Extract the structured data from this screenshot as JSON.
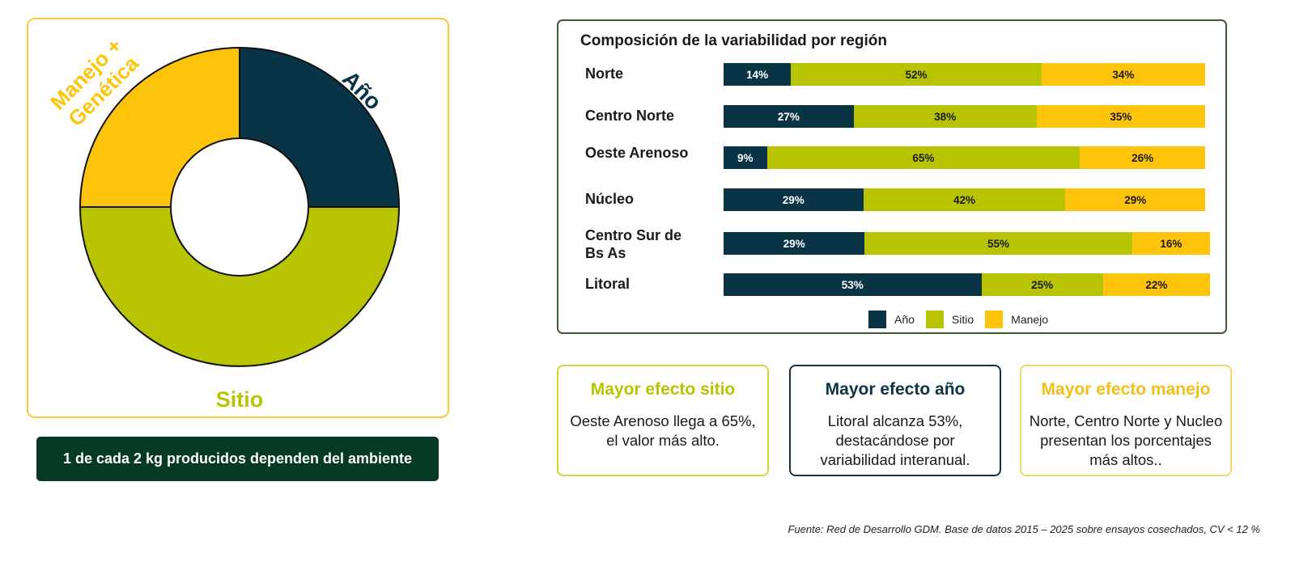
{
  "chart_data": [
    {
      "type": "pie",
      "variant": "donut",
      "slices": [
        {
          "label": "Año",
          "value": 25,
          "color": "#093446"
        },
        {
          "label": "Sitio",
          "value": 50,
          "color": "#b8c402"
        },
        {
          "label": "Manejo + Genética",
          "label_lines": [
            "Manejo +",
            "Genética"
          ],
          "value": 25,
          "color": "#fec40c"
        }
      ]
    },
    {
      "type": "bar",
      "orientation": "horizontal",
      "stacked": true,
      "title": "Composición de la variabilidad por región",
      "categories": [
        "Norte",
        "Centro Norte",
        "Oeste Arenoso",
        "Núcleo",
        "Centro Sur de Bs As",
        "Litoral"
      ],
      "category_lines": [
        [
          "Norte"
        ],
        [
          "Centro Norte"
        ],
        [
          "Oeste Arenoso"
        ],
        [
          "Núcleo"
        ],
        [
          "Centro Sur de",
          "Bs As"
        ],
        [
          "Litoral"
        ]
      ],
      "series": [
        {
          "name": "Año",
          "color": "#093446",
          "values": [
            14,
            27,
            9,
            29,
            29,
            53
          ]
        },
        {
          "name": "Sitio",
          "color": "#b8c402",
          "values": [
            52,
            38,
            65,
            42,
            55,
            25
          ]
        },
        {
          "name": "Manejo",
          "color": "#fec40c",
          "values": [
            34,
            35,
            26,
            29,
            16,
            22
          ]
        }
      ],
      "value_suffix": "%",
      "legend": "bottom"
    }
  ],
  "banner": "1 de cada 2 kg producidos dependen del ambiente",
  "cards": {
    "sitio": {
      "title": "Mayor efecto sitio",
      "body": "Oeste Arenoso llega a 65%, el valor más alto."
    },
    "anio": {
      "title": "Mayor efecto año",
      "body": "Litoral alcanza 53%, destacándose por variabilidad interanual."
    },
    "manejo": {
      "title": "Mayor efecto manejo",
      "body": "Norte, Centro Norte y Nucleo presentan los porcentajes más altos.."
    }
  },
  "source": "Fuente: Red de Desarrollo GDM. Base de datos 2015 – 2025 sobre ensayos cosechados, CV < 12 %"
}
